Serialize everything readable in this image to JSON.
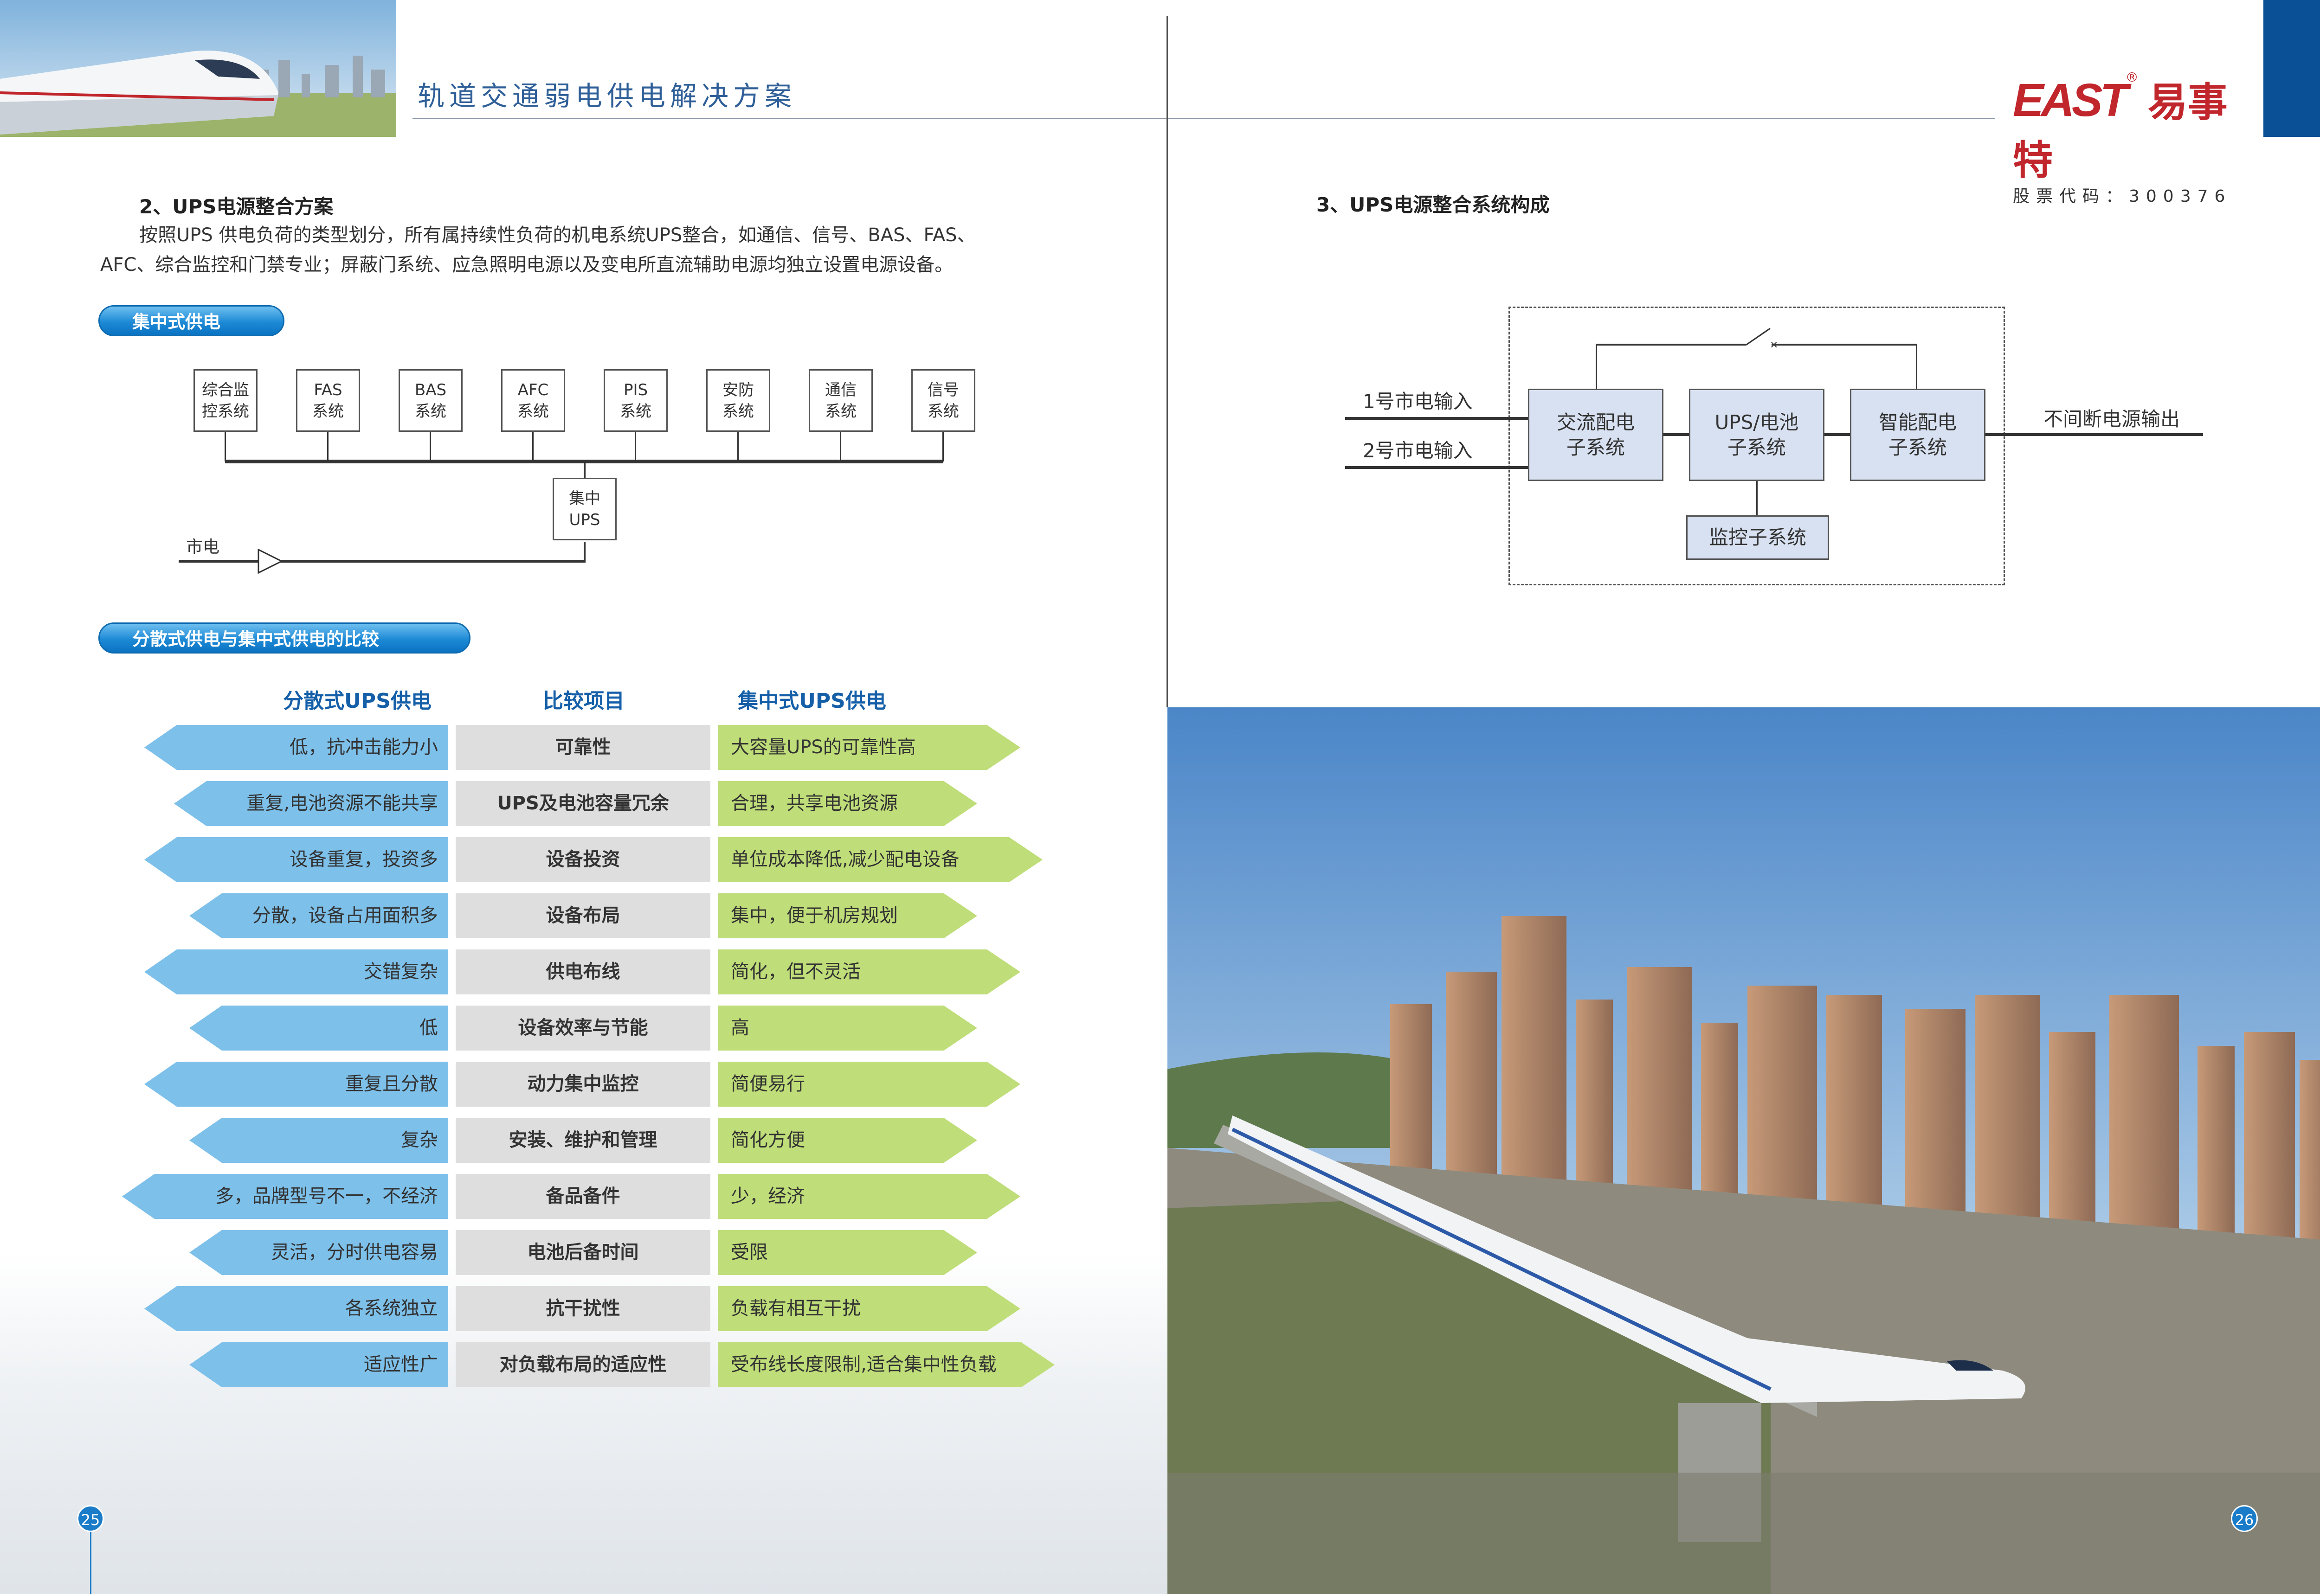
{
  "header": {
    "title": "轨道交通弱电供电解决方案",
    "logo_text": "EAST",
    "logo_cn": "易事特",
    "logo_reg": "®",
    "stock_code": "股票代码：300376"
  },
  "left": {
    "section_title": "2、UPS电源整合方案",
    "para_line1": "按照UPS 供电负荷的类型划分，所有属持续性负荷的机电系统UPS整合，如通信、信号、BAS、FAS、",
    "para_line2": "AFC、综合监控和门禁专业；屏蔽门系统、应急照明电源以及变电所直流辅助电源均独立设置电源设备。",
    "pill1": "集中式供电",
    "systems": [
      [
        "综合监",
        "控系统"
      ],
      [
        "FAS",
        "系统"
      ],
      [
        "BAS",
        "系统"
      ],
      [
        "AFC",
        "系统"
      ],
      [
        "PIS",
        "系统"
      ],
      [
        "安防",
        "系统"
      ],
      [
        "通信",
        "系统"
      ],
      [
        "信号",
        "系统"
      ]
    ],
    "ups_box": [
      "集中",
      "UPS"
    ],
    "mains": "市电",
    "pill2": "分散式供电与集中式供电的比较",
    "table": {
      "headers": [
        "分散式UPS供电",
        "比较项目",
        "集中式UPS供电"
      ],
      "rows": [
        [
          "低，抗冲击能力小",
          "可靠性",
          "大容量UPS的可靠性高"
        ],
        [
          "重复,电池资源不能共享",
          "UPS及电池容量冗余",
          "合理，共享电池资源"
        ],
        [
          "设备重复，投资多",
          "设备投资",
          "单位成本降低,减少配电设备"
        ],
        [
          "分散，设备占用面积多",
          "设备布局",
          "集中，便于机房规划"
        ],
        [
          "交错复杂",
          "供电布线",
          "简化，但不灵活"
        ],
        [
          "低",
          "设备效率与节能",
          "高"
        ],
        [
          "重复且分散",
          "动力集中监控",
          "简便易行"
        ],
        [
          "复杂",
          "安装、维护和管理",
          "简化方便"
        ],
        [
          "多，品牌型号不一，不经济",
          "备品备件",
          "少，经济"
        ],
        [
          "灵活，分时供电容易",
          "电池后备时间",
          "受限"
        ],
        [
          "各系统独立",
          "抗干扰性",
          "负载有相互干扰"
        ],
        [
          "适应性广",
          "对负载布局的适应性",
          "受布线长度限制,适合集中性负载"
        ]
      ]
    },
    "page_number": "25"
  },
  "right": {
    "section_title": "3、UPS电源整合系统构成",
    "input1": "1号市电输入",
    "input2": "2号市电输入",
    "box_ac": [
      "交流配电",
      "子系统"
    ],
    "box_ups": [
      "UPS/电池",
      "子系统"
    ],
    "box_smart": [
      "智能配电",
      "子系统"
    ],
    "box_monitor": "监控子系统",
    "output": "不间断电源输出",
    "page_number": "26"
  },
  "colors": {
    "brand_blue": "#0a5096",
    "heading_blue": "#155fa8",
    "left_arrow": "#7dc0ea",
    "right_arrow": "#bfdd78",
    "middle": "#dedede",
    "logo_red": "#c0262c",
    "diagram_box": "#d8e1f1"
  }
}
